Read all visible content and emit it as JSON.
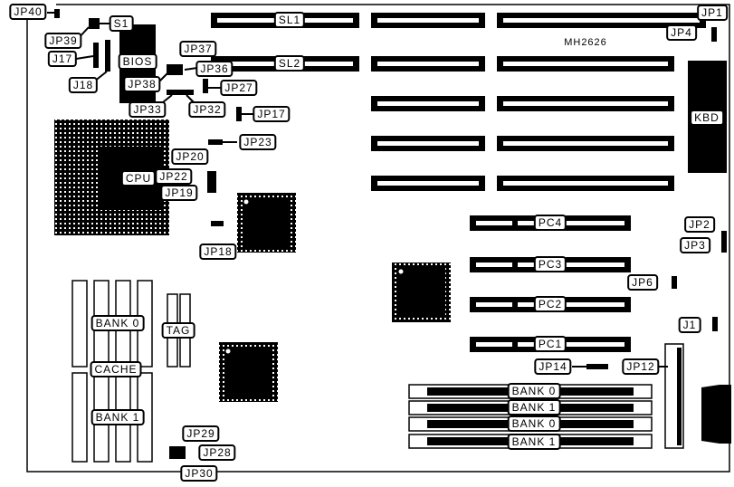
{
  "board": {
    "model": "MH2626"
  },
  "slots": {
    "sl1": "SL1",
    "sl2": "SL2",
    "pc4": "PC4",
    "pc3": "PC3",
    "pc2": "PC2",
    "pc1": "PC1"
  },
  "components": {
    "bios": "BIOS",
    "cpu": "CPU",
    "kbd": "KBD",
    "tag": "TAG",
    "cache": "CACHE",
    "cache_bank0": "BANK 0",
    "cache_bank1": "BANK 1"
  },
  "simm": [
    "BANK 0",
    "BANK 1",
    "BANK 0",
    "BANK 1"
  ],
  "jumpers": {
    "jp40": "JP40",
    "jp39": "JP39",
    "s1": "S1",
    "j17": "J17",
    "j18": "J18",
    "jp37": "JP37",
    "jp36": "JP36",
    "jp38": "JP38",
    "jp27": "JP27",
    "jp33": "JP33",
    "jp32": "JP32",
    "jp17": "JP17",
    "jp23": "JP23",
    "jp20": "JP20",
    "jp22": "JP22",
    "jp19": "JP19",
    "jp18": "JP18",
    "jp1": "JP1",
    "jp4": "JP4",
    "jp2": "JP2",
    "jp3": "JP3",
    "jp6": "JP6",
    "j1": "J1",
    "jp14": "JP14",
    "jp12": "JP12",
    "jp29": "JP29",
    "jp28": "JP28",
    "jp30": "JP30"
  },
  "colors": {
    "ink": "#000000",
    "paper": "#ffffff"
  }
}
